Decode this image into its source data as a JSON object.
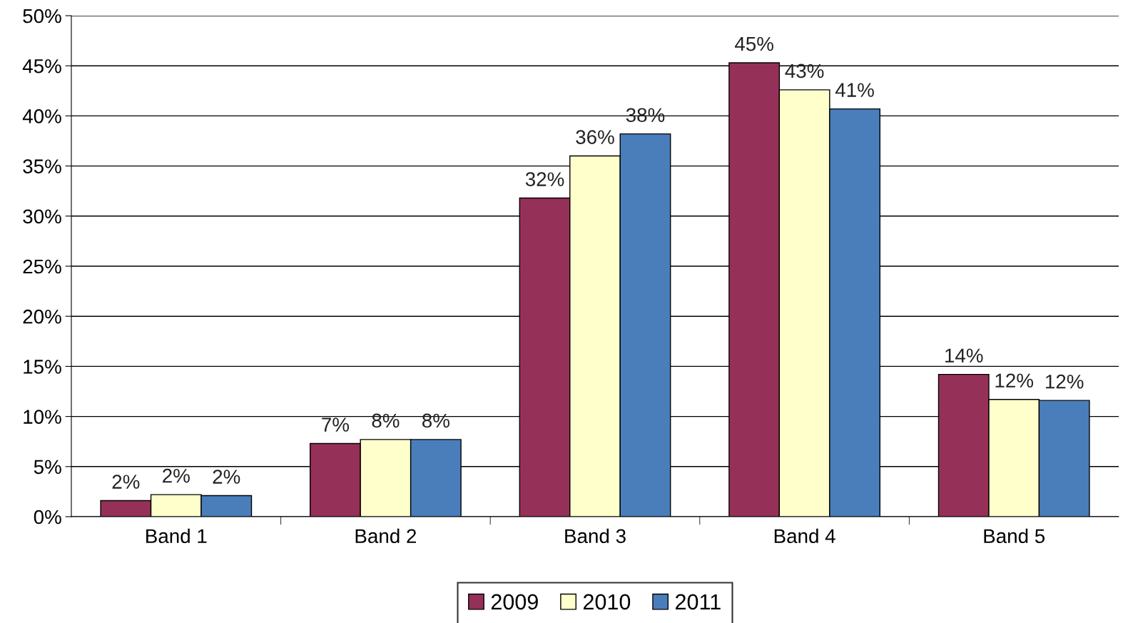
{
  "chart_data": {
    "type": "bar",
    "categories": [
      "Band 1",
      "Band 2",
      "Band 3",
      "Band 4",
      "Band 5"
    ],
    "series": [
      {
        "name": "2009",
        "color": "#953159",
        "values": [
          1.6,
          7.3,
          31.8,
          45.3,
          14.2
        ],
        "value_labels": [
          "2%",
          "7%",
          "32%",
          "45%",
          "14%"
        ]
      },
      {
        "name": "2010",
        "color": "#ffffcc",
        "values": [
          2.2,
          7.7,
          36.0,
          42.6,
          11.7
        ],
        "value_labels": [
          "2%",
          "8%",
          "36%",
          "43%",
          "12%"
        ]
      },
      {
        "name": "2011",
        "color": "#4a7ebb",
        "values": [
          2.1,
          7.7,
          38.2,
          40.7,
          11.6
        ],
        "value_labels": [
          "2%",
          "8%",
          "38%",
          "41%",
          "12%"
        ]
      }
    ],
    "ylim": [
      0,
      50
    ],
    "yticks": [
      {
        "value": 0,
        "label": "0%"
      },
      {
        "value": 5,
        "label": "5%"
      },
      {
        "value": 10,
        "label": "10%"
      },
      {
        "value": 15,
        "label": "15%"
      },
      {
        "value": 20,
        "label": "20%"
      },
      {
        "value": 25,
        "label": "25%"
      },
      {
        "value": 30,
        "label": "30%"
      },
      {
        "value": 35,
        "label": "35%"
      },
      {
        "value": 40,
        "label": "40%"
      },
      {
        "value": 45,
        "label": "45%"
      },
      {
        "value": 50,
        "label": "50%"
      }
    ],
    "grid": "y",
    "legend": "bottom"
  }
}
